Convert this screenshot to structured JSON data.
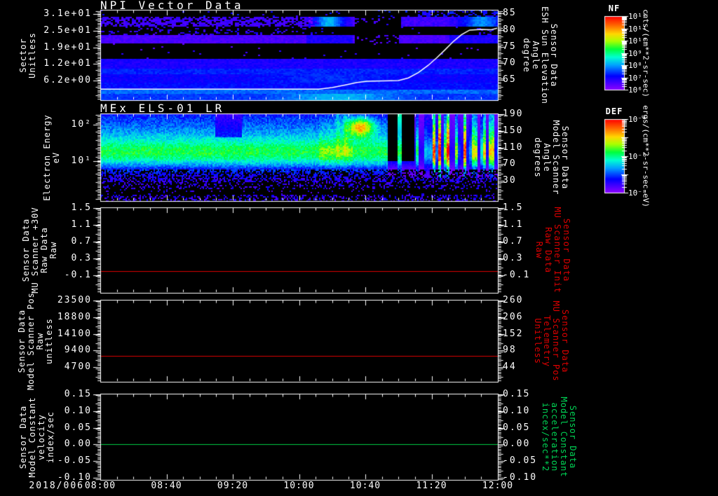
{
  "chart_data": {
    "type": "multi-panel-timeseries",
    "time_axis": {
      "date_label": "2018/006",
      "start": "08:00",
      "end": "12:00",
      "tick_labels": [
        "08:00",
        "08:40",
        "09:20",
        "10:00",
        "10:40",
        "11:20",
        "12:00"
      ],
      "tick_minutes": [
        0,
        40,
        80,
        120,
        160,
        200,
        240
      ],
      "minor_tick_step_minutes": 10,
      "range_minutes": [
        0,
        240
      ]
    },
    "panels": [
      {
        "id": "npi-vector-data",
        "type": "heatmap",
        "title": "NPI Vector Data",
        "colorbar": "NF",
        "left_axis": {
          "label_lines": [
            "Sector",
            "Unitless"
          ],
          "tick_labels": [
            "3.1e+01",
            "2.5e+01",
            "1.9e+01",
            "1.2e+01",
            "6.2e+00"
          ],
          "tick_values": [
            31,
            24.8,
            18.6,
            12.4,
            6.2
          ],
          "ylim": [
            -1.1,
            32.6
          ],
          "scale": "linear"
        },
        "right_axis": {
          "label_lines": [
            "Sensor Data",
            "ESH Sun Elevation",
            "Angle",
            "degree"
          ],
          "tick_labels": [
            "85",
            "80",
            "75",
            "70",
            "65"
          ],
          "tick_values": [
            85,
            80,
            75,
            70,
            65
          ],
          "ylim": [
            58.9,
            86.1
          ],
          "scale": "linear"
        },
        "features": "Low-intensity blue/purple flux in horizontal sector bands; dropout in upper sectors 10:38-11:00; cyan enhancements 10:05-10:30 and 11:30-12:00; brightest band along lowest sectors",
        "overlay_line": {
          "label": "ESH Sun Elevation Angle",
          "color": "#ffffff",
          "points_min_deg": [
            [
              0,
              62.2
            ],
            [
              132,
              62.2
            ],
            [
              140,
              62.7
            ],
            [
              148,
              63.5
            ],
            [
              155,
              64.2
            ],
            [
              161,
              64.6
            ],
            [
              180,
              64.8
            ],
            [
              186,
              65.6
            ],
            [
              192,
              67.2
            ],
            [
              198,
              69.4
            ],
            [
              203,
              71.6
            ],
            [
              208,
              74.0
            ],
            [
              213,
              76.5
            ],
            [
              218,
              78.6
            ],
            [
              223,
              80.0
            ],
            [
              230,
              80.2
            ],
            [
              236,
              80.1
            ],
            [
              240,
              80.6
            ]
          ]
        }
      },
      {
        "id": "mex-els-01-lr",
        "type": "heatmap",
        "title": "MEx ELS-01 LR",
        "colorbar": "DEF",
        "left_axis": {
          "label_lines": [
            "Electron Energy",
            "eV"
          ],
          "tick_labels": [
            "10²",
            "10¹"
          ],
          "tick_values": [
            100,
            10
          ],
          "ylim": [
            0.8,
            204
          ],
          "scale": "log"
        },
        "right_axis": {
          "label_lines": [
            "Sensor Data",
            "Model Scanner",
            "Angle",
            "degrees"
          ],
          "tick_labels": [
            "190",
            "150",
            "110",
            "70",
            "30"
          ],
          "tick_values": [
            190,
            150,
            110,
            70,
            30
          ],
          "ylim": [
            -18.8,
            191.7
          ],
          "scale": "linear"
        },
        "features": "Persistent green flux band ~8-30 eV through whole interval; cyan-blue flux up to ~200 eV; intense red enhancement 50-200 eV near 10:50; flux dropout 10:57-11:10; bright vertical striations 11:10-12:00"
      },
      {
        "id": "mu-scanner-30v",
        "type": "line",
        "left_axis": {
          "label_lines": [
            "Sensor Data",
            "MU Scanner +30V",
            "Raw Data",
            "Raw"
          ],
          "tick_labels": [
            "1.5",
            "1.1",
            "0.7",
            "0.3",
            "-0.1"
          ],
          "tick_values": [
            1.5,
            1.1,
            0.7,
            0.3,
            -0.1
          ],
          "ylim": [
            -0.52,
            1.52
          ],
          "scale": "linear"
        },
        "right_axis": {
          "label_lines": [
            "Sensor Data",
            "MU Scanner Init",
            "Raw Data",
            "Raw"
          ],
          "tick_labels": [
            "1.5",
            "1.1",
            "0.7",
            "0.3",
            "-0.1"
          ],
          "tick_values": [
            1.5,
            1.1,
            0.7,
            0.3,
            -0.1
          ],
          "ylim": [
            -0.52,
            1.52
          ],
          "scale": "linear",
          "label_color": "#dd0000"
        },
        "series": [
          {
            "name": "MU Scanner +30V Raw",
            "color": "#dd0000",
            "constant_value": 0.0
          }
        ]
      },
      {
        "id": "model-scanner-pos",
        "type": "line",
        "left_axis": {
          "label_lines": [
            "Sensor Data",
            "Model Scanner Pos",
            "Raw",
            "unitless"
          ],
          "tick_labels": [
            "23500",
            "18800",
            "14100",
            "9400",
            "4700"
          ],
          "tick_values": [
            23500,
            18800,
            14100,
            9400,
            4700
          ],
          "ylim": [
            590,
            23700
          ],
          "scale": "linear"
        },
        "right_axis": {
          "label_lines": [
            "Sensor Data",
            "MU Scanner Pos",
            "Telemetry",
            "Unitless"
          ],
          "tick_labels": [
            "260",
            "206",
            "152",
            "98",
            "44"
          ],
          "tick_values": [
            260,
            206,
            152,
            98,
            44
          ],
          "ylim": [
            -3.2,
            262.3
          ],
          "scale": "linear",
          "label_color": "#dd0000"
        },
        "series": [
          {
            "name": "Model Scanner Pos Raw",
            "color": "#dd0000",
            "constant_value": 7900
          }
        ]
      },
      {
        "id": "model-constant-velocity",
        "type": "line",
        "left_axis": {
          "label_lines": [
            "Sensor Data",
            "Model Constant",
            "velocity",
            "index/sec"
          ],
          "tick_labels": [
            "0.15",
            "0.10",
            "0.05",
            "0.00",
            "-0.05",
            "-0.10"
          ],
          "tick_values": [
            0.15,
            0.1,
            0.05,
            0.0,
            -0.05,
            -0.1
          ],
          "ylim": [
            -0.106,
            0.152
          ],
          "scale": "linear"
        },
        "right_axis": {
          "label_lines": [
            "Sensor Data",
            "Model Constant",
            "acceleration",
            "incex/sec**2"
          ],
          "tick_labels": [
            "0.15",
            "0.10",
            "0.05",
            "0.00",
            "-0.05",
            "-0.10"
          ],
          "tick_values": [
            0.15,
            0.1,
            0.05,
            0.0,
            -0.05,
            -0.1
          ],
          "ylim": [
            -0.106,
            0.152
          ],
          "scale": "linear",
          "label_color": "#00d455"
        },
        "series": [
          {
            "name": "Model Constant velocity",
            "color": "#00cc44",
            "constant_value": 0.0
          }
        ]
      }
    ],
    "colorbars": [
      {
        "id": "NF",
        "title": "NF",
        "tick_labels": [
          "10¹²",
          "10¹¹",
          "10¹⁰",
          "10⁹",
          "10⁸",
          "10⁷",
          "10⁶"
        ],
        "decades": [
          12,
          6
        ],
        "units": "cnts/(cm**2-sr-sec)"
      },
      {
        "id": "DEF",
        "title": "DEF",
        "tick_labels": [
          "10⁻⁴",
          "10⁻⁶",
          "10⁻⁸"
        ],
        "decades": [
          -4,
          -8
        ],
        "units": "ergs/(cm**2-sr-sec-eV)"
      }
    ]
  }
}
